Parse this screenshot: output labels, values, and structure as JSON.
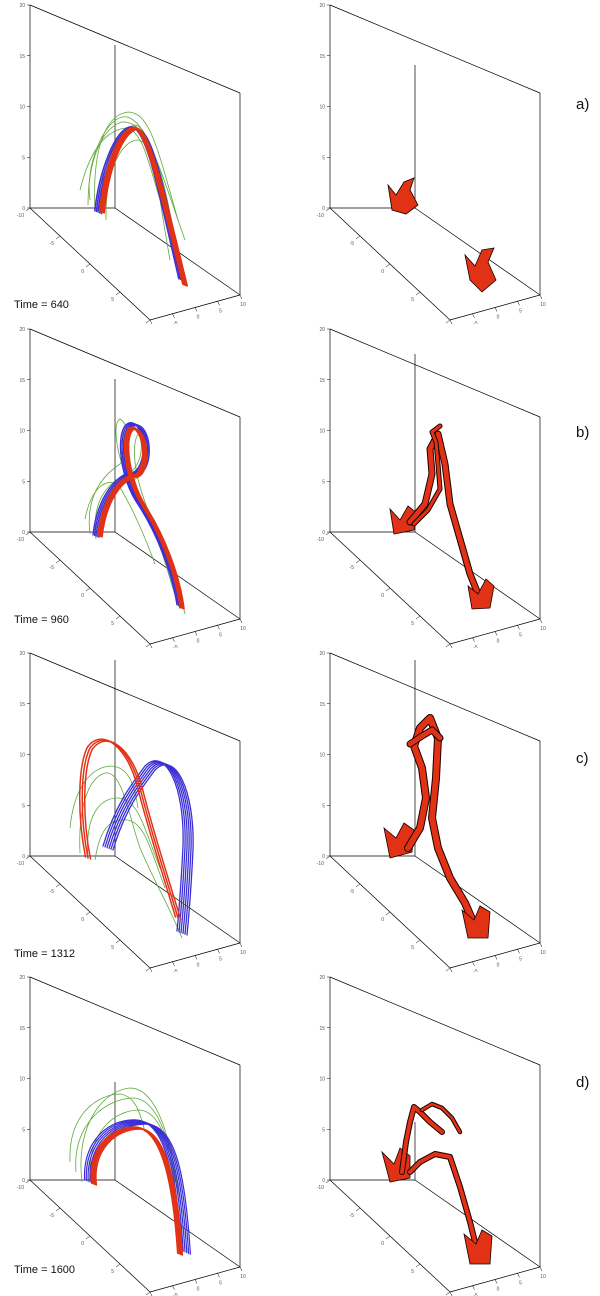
{
  "figure": {
    "rows": [
      {
        "id": "a",
        "label": "a)",
        "time_label": "Time = 640"
      },
      {
        "id": "b",
        "label": "b)",
        "time_label": "Time = 960"
      },
      {
        "id": "c",
        "label": "c)",
        "time_label": "Time = 1312"
      },
      {
        "id": "d",
        "label": "d)",
        "time_label": "Time = 1600"
      }
    ],
    "axes": {
      "z_ticks": [
        "20",
        "15",
        "10",
        "5",
        "0"
      ],
      "y_ticks": [
        "10",
        "5",
        "0",
        "-5",
        "-10"
      ],
      "x_ticks": [
        "-10",
        "-5",
        "0",
        "5",
        "10"
      ]
    },
    "colors": {
      "red": "#e23216",
      "blue": "#3b2fd6",
      "green": "#5fa83a",
      "dark": "#1a0000",
      "axis": "#000000"
    }
  }
}
